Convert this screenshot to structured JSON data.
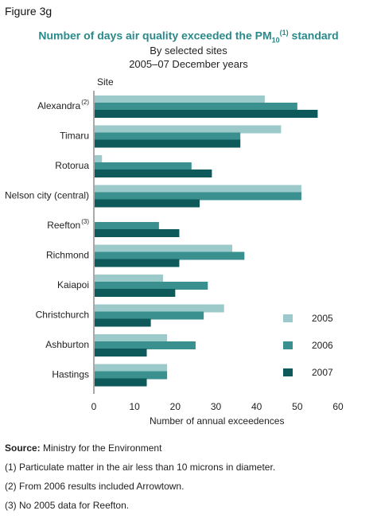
{
  "figure_label": "Figure 3g",
  "title_main": "Number of days air quality exceeded the PM",
  "title_sub": "10",
  "title_sup": "(1)",
  "title_end": " standard",
  "subtitle1": "By selected sites",
  "subtitle2": "2005–07 December years",
  "footer": {
    "source_label": "Source:",
    "source_text": " Ministry for the Environment",
    "note1": "(1) Particulate matter in the air less than 10 microns in diameter.",
    "note2": "(2) From 2006 results included Arrowtown.",
    "note3": "(3) No 2005 data for Reefton."
  },
  "colors": {
    "2005": "#9cc9c9",
    "2006": "#3a8f8f",
    "2007": "#0e5a5a"
  },
  "chart_data": {
    "type": "bar",
    "orientation": "horizontal",
    "ylabel": "Site",
    "xlabel": "Number of annual exceedences",
    "xlim": [
      0,
      60
    ],
    "xticks": [
      0,
      10,
      20,
      30,
      40,
      50,
      60
    ],
    "grid": false,
    "legend_position": "bottom-right",
    "categories": [
      "Alexandra",
      "Timaru",
      "Rotorua",
      "Nelson city (central)",
      "Reefton",
      "Richmond",
      "Kaiapoi",
      "Christchurch",
      "Ashburton",
      "Hastings"
    ],
    "category_superscripts": [
      "(2)",
      "",
      "",
      "",
      "(3)",
      "",
      "",
      "",
      "",
      ""
    ],
    "series": [
      {
        "name": "2005",
        "values": [
          42,
          46,
          2,
          51,
          null,
          34,
          17,
          32,
          18,
          18
        ]
      },
      {
        "name": "2006",
        "values": [
          50,
          36,
          24,
          51,
          16,
          37,
          28,
          27,
          25,
          18
        ]
      },
      {
        "name": "2007",
        "values": [
          55,
          36,
          29,
          26,
          21,
          21,
          20,
          14,
          13,
          13
        ]
      }
    ]
  }
}
